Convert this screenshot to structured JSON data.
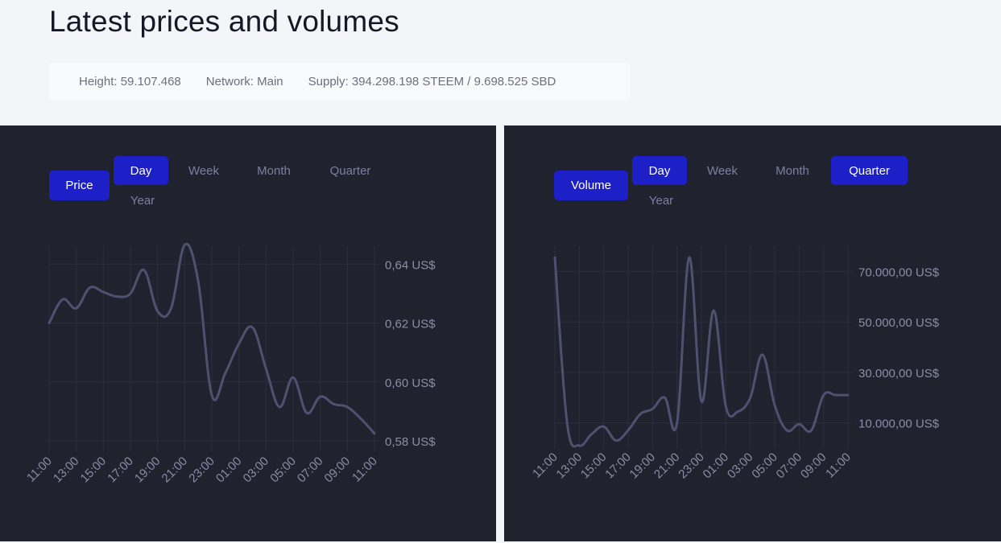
{
  "page": {
    "title": "Latest prices and volumes"
  },
  "stats": {
    "height": "Height: 59.107.468",
    "network": "Network: Main",
    "supply": "Supply: 394.298.198 STEEM / 9.698.525 SBD"
  },
  "colors": {
    "panel_bg": "#20222e",
    "accent": "#1d20c7",
    "line": "#4e5170",
    "grid": "#2c2f3d",
    "muted_text": "#7b80a1"
  },
  "price_panel": {
    "metric_button": "Price",
    "ranges": [
      "Day",
      "Week",
      "Month",
      "Quarter",
      "Year"
    ],
    "active_ranges": [
      "Day"
    ]
  },
  "volume_panel": {
    "metric_button": "Volume",
    "ranges": [
      "Day",
      "Week",
      "Month",
      "Quarter",
      "Year"
    ],
    "active_ranges": [
      "Day",
      "Quarter"
    ]
  },
  "chart_data": [
    {
      "type": "line",
      "title": "",
      "xlabel": "",
      "ylabel": "",
      "x_ticks": [
        "11:00",
        "13:00",
        "15:00",
        "17:00",
        "19:00",
        "21:00",
        "23:00",
        "01:00",
        "03:00",
        "05:00",
        "07:00",
        "09:00",
        "11:00"
      ],
      "y_ticks": [
        "0,64 US$",
        "0,62 US$",
        "0,60 US$",
        "0,58 US$"
      ],
      "y_tick_values": [
        0.64,
        0.62,
        0.6,
        0.58
      ],
      "ylim": [
        0.5762,
        0.6458
      ],
      "grid": true,
      "x": [
        0,
        0.5,
        1,
        1.5,
        2,
        2.5,
        3,
        3.5,
        4,
        4.5,
        5,
        5.5,
        6,
        6.5,
        7,
        7.5,
        8,
        8.5,
        9,
        9.5,
        10,
        10.5,
        11,
        11.5,
        12
      ],
      "values": [
        0.62,
        0.628,
        0.625,
        0.632,
        0.6305,
        0.629,
        0.63,
        0.638,
        0.624,
        0.625,
        0.6465,
        0.634,
        0.5955,
        0.603,
        0.613,
        0.6185,
        0.6045,
        0.5915,
        0.6015,
        0.5895,
        0.595,
        0.5925,
        0.5915,
        0.5875,
        0.5825
      ]
    },
    {
      "type": "line",
      "title": "",
      "xlabel": "",
      "ylabel": "",
      "x_ticks": [
        "11:00",
        "13:00",
        "15:00",
        "17:00",
        "19:00",
        "21:00",
        "23:00",
        "01:00",
        "03:00",
        "05:00",
        "07:00",
        "09:00",
        "11:00"
      ],
      "y_ticks": [
        "70.000,00 US$",
        "50.000,00 US$",
        "30.000,00 US$",
        "10.000,00 US$"
      ],
      "y_tick_values": [
        70000,
        50000,
        30000,
        10000
      ],
      "ylim": [
        0,
        80000
      ],
      "grid": true,
      "x": [
        0,
        0.5,
        1,
        1.5,
        2,
        2.5,
        3,
        3.5,
        4,
        4.5,
        5,
        5.5,
        6,
        6.5,
        7,
        7.5,
        8,
        8.5,
        9,
        9.5,
        10,
        10.5,
        11,
        11.5,
        12
      ],
      "values": [
        75500,
        10000,
        1000,
        5500,
        8500,
        3000,
        7000,
        13500,
        15500,
        20000,
        10000,
        75500,
        18500,
        54500,
        16500,
        14500,
        20000,
        37000,
        17000,
        7000,
        9500,
        7000,
        21000,
        21000,
        21000
      ]
    }
  ]
}
